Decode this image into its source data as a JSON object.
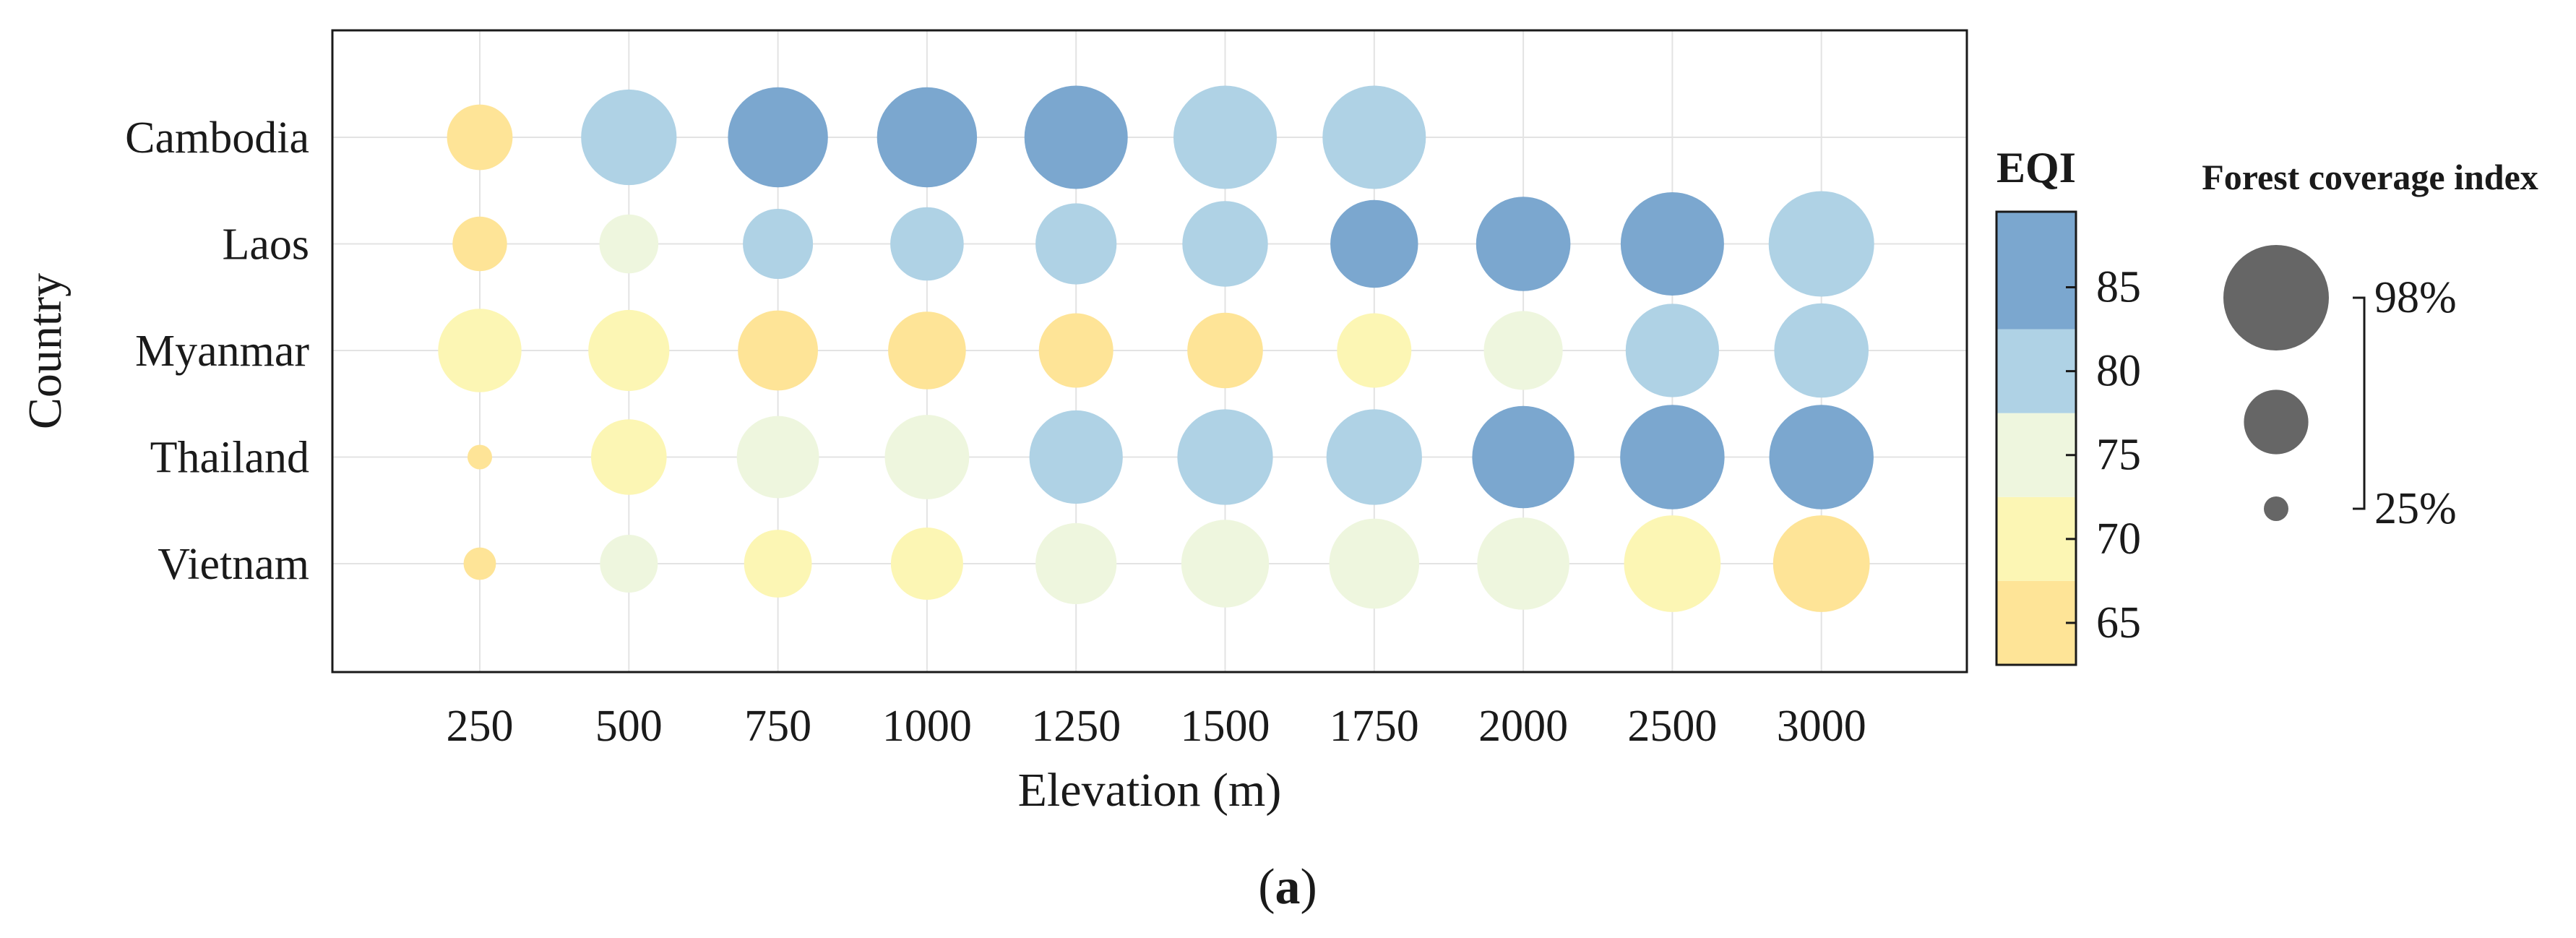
{
  "chart_data": {
    "type": "bubble-grid",
    "xlabel": "Elevation (m)",
    "ylabel": "Country",
    "x_categories": [
      "250",
      "500",
      "750",
      "1000",
      "1250",
      "1500",
      "1750",
      "2000",
      "2500",
      "3000"
    ],
    "y_categories": [
      "Cambodia",
      "Laos",
      "Myanmar",
      "Thailand",
      "Vietnam"
    ],
    "grid": true,
    "color_scale": {
      "label": "EQI",
      "range": [
        62.5,
        89.5
      ],
      "ticks": [
        "65",
        "70",
        "75",
        "80",
        "85"
      ],
      "bins": [
        {
          "min": 62.5,
          "max": 67.5,
          "color": "#FEE497"
        },
        {
          "min": 67.5,
          "max": 72.5,
          "color": "#FCF6B4"
        },
        {
          "min": 72.5,
          "max": 77.5,
          "color": "#EEF6DE"
        },
        {
          "min": 77.5,
          "max": 82.5,
          "color": "#AFD2E5"
        },
        {
          "min": 82.5,
          "max": 89.5,
          "color": "#7BA7CF"
        }
      ]
    },
    "size_scale": {
      "label": "Forest coverage index",
      "max_label": "98%",
      "min_label": "25%",
      "legend_values": [
        0.98,
        0.61,
        0.25
      ]
    },
    "points": [
      {
        "country": "Cambodia",
        "elevation": "250",
        "eqi": 66,
        "forest_coverage": 0.62
      },
      {
        "country": "Cambodia",
        "elevation": "500",
        "eqi": 80,
        "forest_coverage": 0.89
      },
      {
        "country": "Cambodia",
        "elevation": "750",
        "eqi": 86,
        "forest_coverage": 0.93
      },
      {
        "country": "Cambodia",
        "elevation": "1000",
        "eqi": 86,
        "forest_coverage": 0.93
      },
      {
        "country": "Cambodia",
        "elevation": "1250",
        "eqi": 86,
        "forest_coverage": 0.96
      },
      {
        "country": "Cambodia",
        "elevation": "1500",
        "eqi": 80,
        "forest_coverage": 0.96
      },
      {
        "country": "Cambodia",
        "elevation": "1750",
        "eqi": 80,
        "forest_coverage": 0.96
      },
      {
        "country": "Laos",
        "elevation": "250",
        "eqi": 66,
        "forest_coverage": 0.52
      },
      {
        "country": "Laos",
        "elevation": "500",
        "eqi": 75,
        "forest_coverage": 0.56
      },
      {
        "country": "Laos",
        "elevation": "750",
        "eqi": 80,
        "forest_coverage": 0.66
      },
      {
        "country": "Laos",
        "elevation": "1000",
        "eqi": 80,
        "forest_coverage": 0.69
      },
      {
        "country": "Laos",
        "elevation": "1250",
        "eqi": 80,
        "forest_coverage": 0.76
      },
      {
        "country": "Laos",
        "elevation": "1500",
        "eqi": 80,
        "forest_coverage": 0.8
      },
      {
        "country": "Laos",
        "elevation": "1750",
        "eqi": 86,
        "forest_coverage": 0.82
      },
      {
        "country": "Laos",
        "elevation": "2000",
        "eqi": 86,
        "forest_coverage": 0.88
      },
      {
        "country": "Laos",
        "elevation": "2500",
        "eqi": 86,
        "forest_coverage": 0.96
      },
      {
        "country": "Laos",
        "elevation": "3000",
        "eqi": 80,
        "forest_coverage": 0.98
      },
      {
        "country": "Myanmar",
        "elevation": "250",
        "eqi": 71,
        "forest_coverage": 0.78
      },
      {
        "country": "Myanmar",
        "elevation": "500",
        "eqi": 71,
        "forest_coverage": 0.76
      },
      {
        "country": "Myanmar",
        "elevation": "750",
        "eqi": 66,
        "forest_coverage": 0.75
      },
      {
        "country": "Myanmar",
        "elevation": "1000",
        "eqi": 66,
        "forest_coverage": 0.73
      },
      {
        "country": "Myanmar",
        "elevation": "1250",
        "eqi": 66,
        "forest_coverage": 0.7
      },
      {
        "country": "Myanmar",
        "elevation": "1500",
        "eqi": 66,
        "forest_coverage": 0.71
      },
      {
        "country": "Myanmar",
        "elevation": "1750",
        "eqi": 71,
        "forest_coverage": 0.7
      },
      {
        "country": "Myanmar",
        "elevation": "2000",
        "eqi": 75,
        "forest_coverage": 0.74
      },
      {
        "country": "Myanmar",
        "elevation": "2500",
        "eqi": 80,
        "forest_coverage": 0.87
      },
      {
        "country": "Myanmar",
        "elevation": "3000",
        "eqi": 80,
        "forest_coverage": 0.88
      },
      {
        "country": "Thailand",
        "elevation": "250",
        "eqi": 66,
        "forest_coverage": 0.25
      },
      {
        "country": "Thailand",
        "elevation": "500",
        "eqi": 71,
        "forest_coverage": 0.71
      },
      {
        "country": "Thailand",
        "elevation": "750",
        "eqi": 75,
        "forest_coverage": 0.77
      },
      {
        "country": "Thailand",
        "elevation": "1000",
        "eqi": 75,
        "forest_coverage": 0.79
      },
      {
        "country": "Thailand",
        "elevation": "1250",
        "eqi": 80,
        "forest_coverage": 0.87
      },
      {
        "country": "Thailand",
        "elevation": "1500",
        "eqi": 80,
        "forest_coverage": 0.89
      },
      {
        "country": "Thailand",
        "elevation": "1750",
        "eqi": 80,
        "forest_coverage": 0.89
      },
      {
        "country": "Thailand",
        "elevation": "2000",
        "eqi": 86,
        "forest_coverage": 0.95
      },
      {
        "country": "Thailand",
        "elevation": "2500",
        "eqi": 86,
        "forest_coverage": 0.97
      },
      {
        "country": "Thailand",
        "elevation": "3000",
        "eqi": 86,
        "forest_coverage": 0.97
      },
      {
        "country": "Vietnam",
        "elevation": "250",
        "eqi": 67,
        "forest_coverage": 0.32
      },
      {
        "country": "Vietnam",
        "elevation": "500",
        "eqi": 75,
        "forest_coverage": 0.55
      },
      {
        "country": "Vietnam",
        "elevation": "750",
        "eqi": 71,
        "forest_coverage": 0.64
      },
      {
        "country": "Vietnam",
        "elevation": "1000",
        "eqi": 71,
        "forest_coverage": 0.68
      },
      {
        "country": "Vietnam",
        "elevation": "1250",
        "eqi": 75,
        "forest_coverage": 0.76
      },
      {
        "country": "Vietnam",
        "elevation": "1500",
        "eqi": 75,
        "forest_coverage": 0.82
      },
      {
        "country": "Vietnam",
        "elevation": "1750",
        "eqi": 75,
        "forest_coverage": 0.84
      },
      {
        "country": "Vietnam",
        "elevation": "2000",
        "eqi": 75,
        "forest_coverage": 0.86
      },
      {
        "country": "Vietnam",
        "elevation": "2500",
        "eqi": 71,
        "forest_coverage": 0.9
      },
      {
        "country": "Vietnam",
        "elevation": "3000",
        "eqi": 66,
        "forest_coverage": 0.9
      }
    ]
  },
  "caption": {
    "open": "(",
    "letter": "a",
    "close": ")"
  }
}
